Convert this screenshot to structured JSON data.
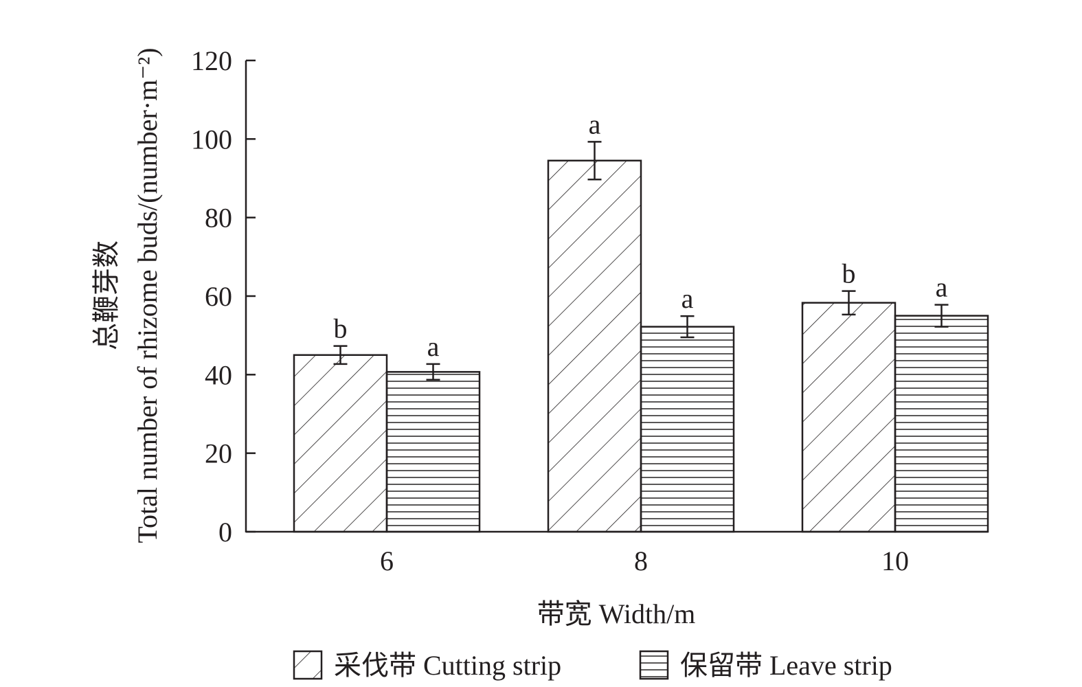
{
  "chart_data": {
    "type": "bar",
    "title": "",
    "xlabel": "带宽 Width/m",
    "ylabel_line1": "总鞭芽数",
    "ylabel_line2": "Total number of rhizome buds/(number·m⁻²)",
    "ylim": [
      0,
      120
    ],
    "yticks": [
      "0",
      "20",
      "40",
      "60",
      "80",
      "100",
      "120"
    ],
    "categories": [
      "6",
      "8",
      "10"
    ],
    "grid": false,
    "legend_position": "bottom",
    "series": [
      {
        "name": "采伐带 Cutting strip",
        "pattern": "diagonal-hatch",
        "values": [
          45,
          94.5,
          58.3
        ],
        "errors": [
          2.3,
          4.8,
          3.0
        ],
        "letters": [
          "b",
          "a",
          "b"
        ]
      },
      {
        "name": "保留带 Leave strip",
        "pattern": "horizontal-hatch",
        "values": [
          40.7,
          52.2,
          55
        ],
        "errors": [
          2.0,
          2.7,
          2.8
        ],
        "letters": [
          "a",
          "a",
          "a"
        ]
      }
    ],
    "colors": {
      "ink": "#231f20",
      "fill": "#ffffff"
    }
  }
}
